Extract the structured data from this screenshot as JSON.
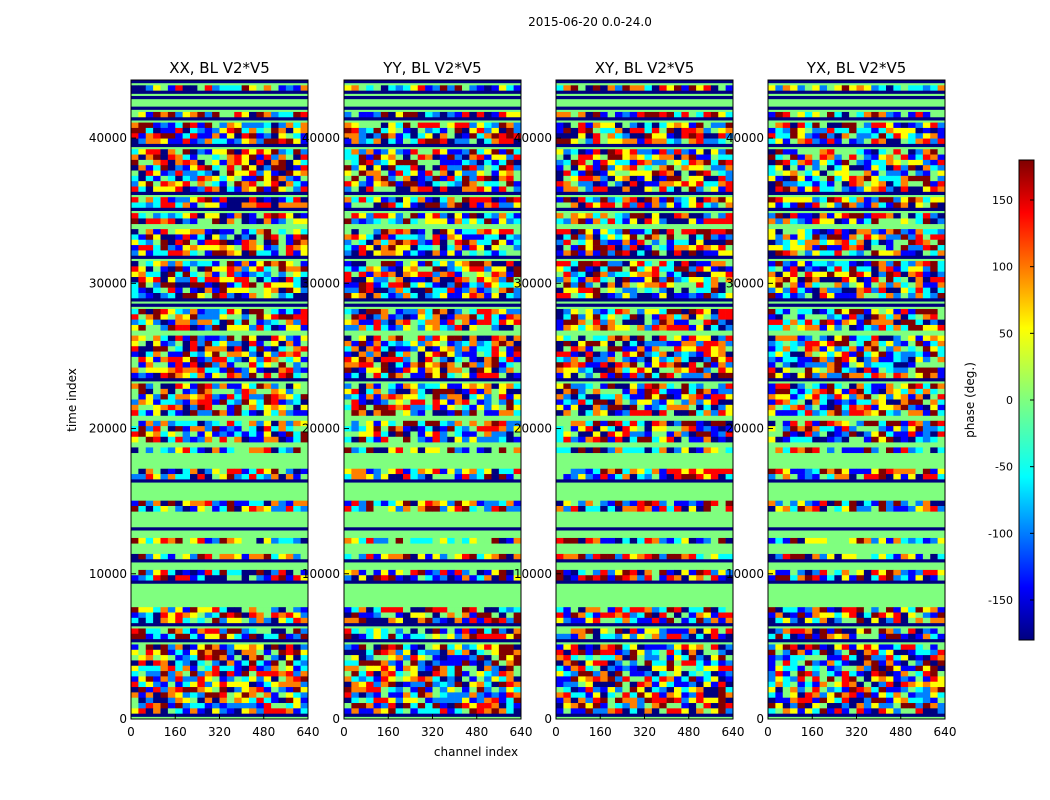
{
  "chart_data": {
    "type": "heatmap",
    "suptitle": "2015-06-20 0.0-24.0",
    "xlabel": "channel index",
    "ylabel": "time index",
    "xlim": [
      0,
      640
    ],
    "ylim": [
      0,
      44000
    ],
    "xticks": [
      0,
      160,
      320,
      480,
      640
    ],
    "yticks": [
      0,
      10000,
      20000,
      30000,
      40000
    ],
    "panels": [
      {
        "title": "XX, BL V2*V5",
        "xlabel": "",
        "ylabel": "time index"
      },
      {
        "title": "YY, BL V2*V5",
        "xlabel": "channel index",
        "ylabel": ""
      },
      {
        "title": "XY, BL V2*V5",
        "xlabel": "",
        "ylabel": ""
      },
      {
        "title": "YX, BL V2*V5",
        "xlabel": "",
        "ylabel": ""
      }
    ],
    "colorbar": {
      "label": "phase (deg.)",
      "range": [
        -180,
        180
      ],
      "ticks": [
        -150,
        -100,
        -50,
        0,
        50,
        100,
        150
      ],
      "colormap": "jet"
    }
  },
  "colors": {
    "background": "#ffffff",
    "jet": [
      "#00007f",
      "#0000ff",
      "#007fff",
      "#00ffff",
      "#7fff7f",
      "#ffff00",
      "#ff7f00",
      "#ff0000",
      "#7f0000"
    ],
    "band": "#7fff7f",
    "dark_band": "#00007f"
  }
}
